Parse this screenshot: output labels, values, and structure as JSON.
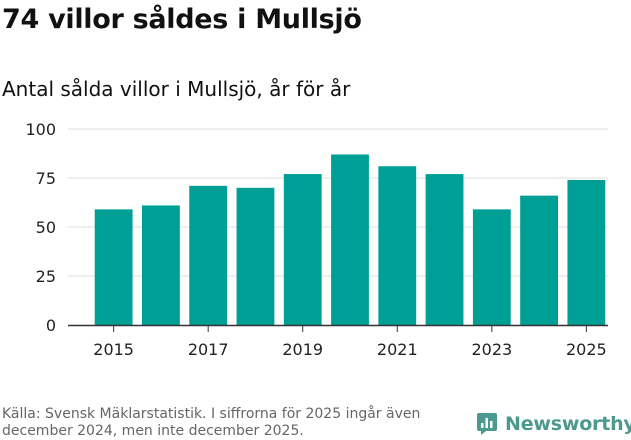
{
  "header": {
    "title": "74 villor såldes i Mullsjö",
    "subtitle": "Antal sålda villor i Mullsjö, år för år"
  },
  "footer": {
    "source": "Källa: Svensk Mäklarstatistik. I siffrorna för 2025 ingår även december 2024, men inte december 2025.",
    "brand": "Newsworthy"
  },
  "colors": {
    "bar": "#009f95",
    "grid": "#dddddd",
    "axis": "#333333",
    "brand": "#4c9a8d"
  },
  "chart_data": {
    "type": "bar",
    "title": "Antal sålda villor i Mullsjö, år för år",
    "xlabel": "",
    "ylabel": "",
    "categories": [
      "2015",
      "2016",
      "2017",
      "2018",
      "2019",
      "2020",
      "2021",
      "2022",
      "2023",
      "2024",
      "2025"
    ],
    "values": [
      59,
      61,
      71,
      70,
      77,
      87,
      81,
      77,
      59,
      66,
      74
    ],
    "x_tick_labels": [
      "2015",
      "2017",
      "2019",
      "2021",
      "2023",
      "2025"
    ],
    "y_ticks": [
      0,
      25,
      50,
      75,
      100
    ],
    "ylim": [
      0,
      100
    ],
    "grid": true,
    "legend": "none"
  }
}
